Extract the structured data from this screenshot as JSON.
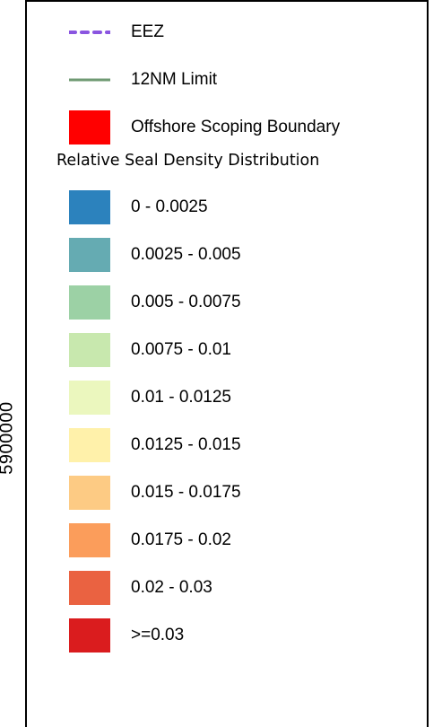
{
  "axis": {
    "y_tick_label": "5900000"
  },
  "legend": {
    "lines": [
      {
        "name": "eez",
        "label": "EEZ",
        "color": "#8a55e0",
        "style": "dashed"
      },
      {
        "name": "12nm-limit",
        "label": "12NM Limit",
        "color": "#6f9a73",
        "style": "solid"
      }
    ],
    "boundary": {
      "label": "Offshore Scoping Boundary",
      "color": "#ff0000"
    },
    "density_title": "Relative Seal Density Distribution",
    "density_classes": [
      {
        "label": "0 - 0.0025",
        "color": "#2c82bd"
      },
      {
        "label": "0.0025 - 0.005",
        "color": "#65abb2"
      },
      {
        "label": "0.005 - 0.0075",
        "color": "#9cd1a5"
      },
      {
        "label": "0.0075 - 0.01",
        "color": "#c8e8ae"
      },
      {
        "label": "0.01 - 0.0125",
        "color": "#ebf7be"
      },
      {
        "label": "0.0125 - 0.015",
        "color": "#fff1aa"
      },
      {
        "label": "0.015 - 0.0175",
        "color": "#fdcb84"
      },
      {
        "label": "0.0175 - 0.02",
        "color": "#fb9d5b"
      },
      {
        "label": "0.02 - 0.03",
        "color": "#ea6241"
      },
      {
        "label": ">=0.03",
        "color": "#da1c1e"
      }
    ]
  }
}
